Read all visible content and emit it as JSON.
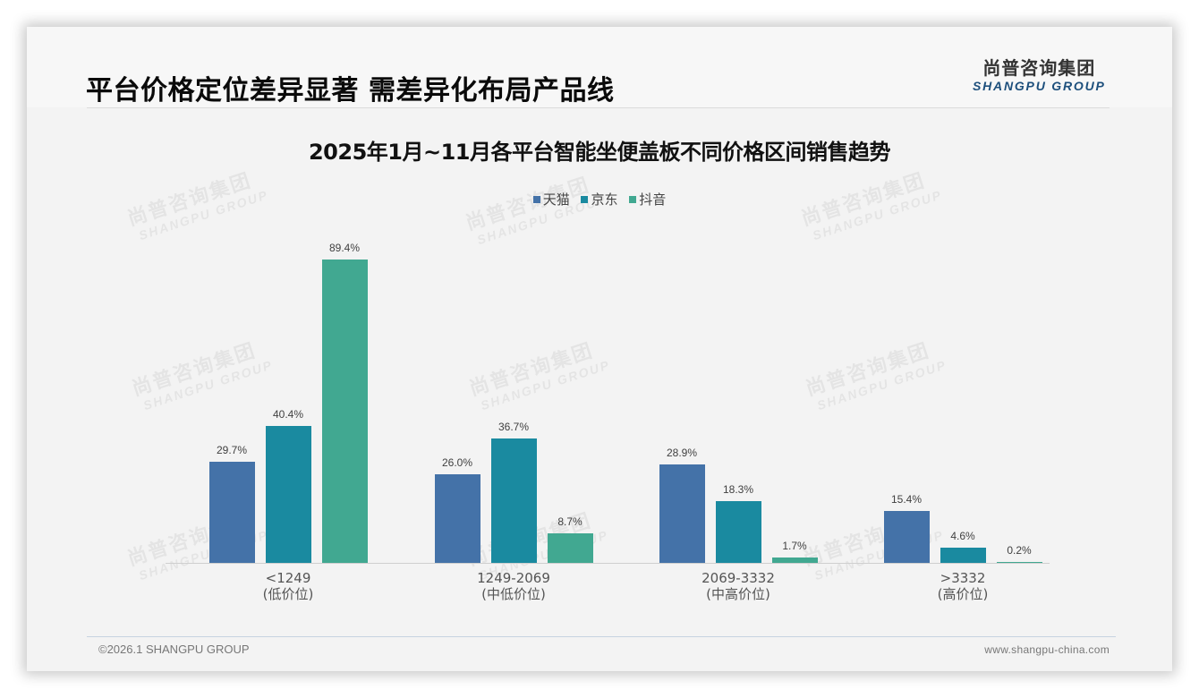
{
  "header": {
    "title": "平台价格定位差异显著 需差异化布局产品线",
    "logo_cn": "尚普咨询集团",
    "logo_en": "SHANGPU GROUP"
  },
  "watermark": {
    "cn": "尚普咨询集团",
    "en": "SHANGPU GROUP"
  },
  "footer": {
    "copyright": "©2026.1 SHANGPU GROUP",
    "website": "www.shangpu-china.com"
  },
  "colors": {
    "tmall": "#4472a8",
    "jd": "#1a8aa0",
    "douyin": "#41a891"
  },
  "chart_data": {
    "type": "bar",
    "title": "2025年1月~11月各平台智能坐便盖板不同价格区间销售趋势",
    "xlabel": "",
    "ylabel": "",
    "ylim": [
      0,
      100
    ],
    "grid": false,
    "legend_position": "top",
    "categories": [
      "<1249",
      "1249-2069",
      "2069-3332",
      ">3332"
    ],
    "category_sublabels": [
      "(低价位)",
      "(中低价位)",
      "(中高价位)",
      "(高价位)"
    ],
    "series": [
      {
        "name": "天猫",
        "color": "#4472a8",
        "values": [
          29.7,
          26.0,
          28.9,
          15.4
        ],
        "labels": [
          "29.7%",
          "26.0%",
          "28.9%",
          "15.4%"
        ]
      },
      {
        "name": "京东",
        "color": "#1a8aa0",
        "values": [
          40.4,
          36.7,
          18.3,
          4.6
        ],
        "labels": [
          "40.4%",
          "36.7%",
          "18.3%",
          "4.6%"
        ]
      },
      {
        "name": "抖音",
        "color": "#41a891",
        "values": [
          89.4,
          8.7,
          1.7,
          0.2
        ],
        "labels": [
          "89.4%",
          "8.7%",
          "1.7%",
          "0.2%"
        ]
      }
    ],
    "unit": "%"
  }
}
